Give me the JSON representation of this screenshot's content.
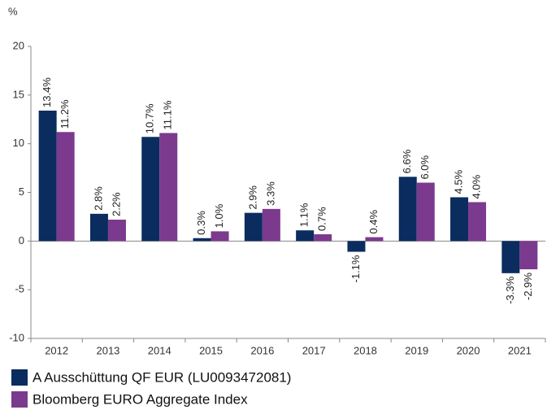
{
  "chart_data": {
    "type": "bar",
    "y_label": "%",
    "categories": [
      "2012",
      "2013",
      "2014",
      "2015",
      "2016",
      "2017",
      "2018",
      "2019",
      "2020",
      "2021"
    ],
    "series": [
      {
        "name": "A Ausschüttung QF EUR (LU0093472081)",
        "color": "#0b2c5f",
        "values": [
          13.4,
          2.8,
          10.7,
          0.3,
          2.9,
          1.1,
          -1.1,
          6.6,
          4.5,
          -3.3
        ],
        "value_labels": [
          "13.4%",
          "2.8%",
          "10.7%",
          "0.3%",
          "2.9%",
          "1.1%",
          "-1.1%",
          "6.6%",
          "4.5%",
          "-3.3%"
        ]
      },
      {
        "name": "Bloomberg EURO Aggregate Index",
        "color": "#7b3a8e",
        "values": [
          11.2,
          2.2,
          11.1,
          1.0,
          3.3,
          0.7,
          0.4,
          6.0,
          4.0,
          -2.9
        ],
        "value_labels": [
          "11.2%",
          "2.2%",
          "11.1%",
          "1.0%",
          "3.3%",
          "0.7%",
          "0.4%",
          "6.0%",
          "4.0%",
          "-2.9%"
        ]
      }
    ],
    "ylim": [
      -10,
      20
    ],
    "yticks": [
      -10,
      -5,
      0,
      5,
      10,
      15,
      20
    ],
    "grid": false
  }
}
